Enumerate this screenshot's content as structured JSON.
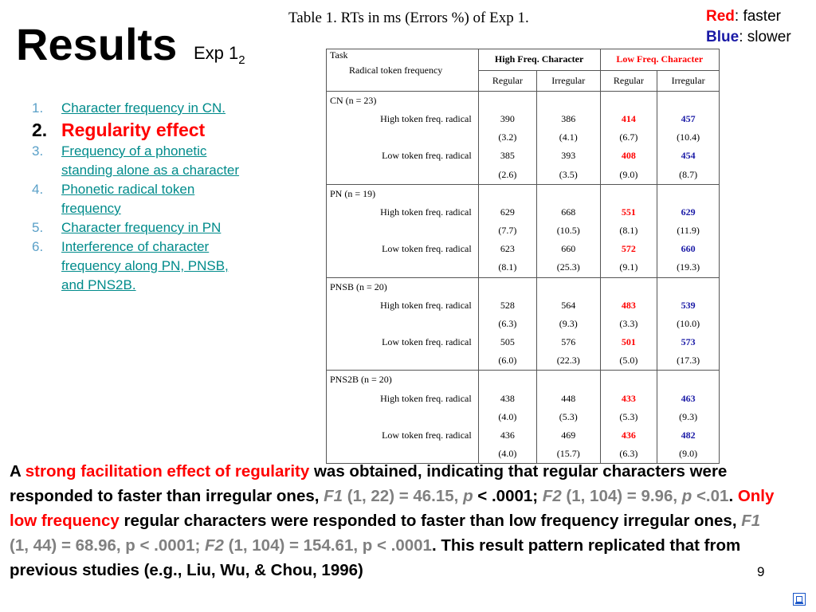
{
  "slide": {
    "title": "Results",
    "subtitle": "Exp 1",
    "subtitle_sub": "2",
    "caption": "Table 1. RTs in ms (Errors %) of Exp 1.",
    "page_number": "9"
  },
  "legend": {
    "red_label": "Red",
    "red_text": ": faster",
    "blue_label": "Blue",
    "blue_text": ": slower"
  },
  "agenda": [
    {
      "num": "1.",
      "text": "Character frequency in CN."
    },
    {
      "num": "2.",
      "text": "Regularity effect"
    },
    {
      "num": "3.",
      "text": "Frequency of a phonetic standing alone as a character"
    },
    {
      "num": "4.",
      "text": "Phonetic radical token frequency"
    },
    {
      "num": "5.",
      "text": "Character frequency in PN"
    },
    {
      "num": "6.",
      "text": "Interference of character frequency along PN, PNSB, and PNS2B."
    }
  ],
  "table": {
    "task_label": "Task",
    "radical_label": "Radical  token  frequency",
    "high_group": "High Freq. Character",
    "low_group": "Low Freq. Character",
    "columns": [
      "Regular",
      "Irregular",
      "Regular",
      "Irregular"
    ],
    "groups": [
      {
        "name": "CN (n = 23)",
        "rows": [
          {
            "label": "High token freq. radical",
            "rt": [
              "390",
              "386",
              "414",
              "457"
            ],
            "err": [
              "(3.2)",
              "(4.1)",
              "(6.7)",
              "(10.4)"
            ]
          },
          {
            "label": "Low token freq. radical",
            "rt": [
              "385",
              "393",
              "408",
              "454"
            ],
            "err": [
              "(2.6)",
              "(3.5)",
              "(9.0)",
              "(8.7)"
            ]
          }
        ]
      },
      {
        "name": "PN (n = 19)",
        "rows": [
          {
            "label": "High token freq. radical",
            "rt": [
              "629",
              "668",
              "551",
              "629"
            ],
            "err": [
              "(7.7)",
              "(10.5)",
              "(8.1)",
              "(11.9)"
            ]
          },
          {
            "label": "Low token freq. radical",
            "rt": [
              "623",
              "660",
              "572",
              "660"
            ],
            "err": [
              "(8.1)",
              "(25.3)",
              "(9.1)",
              "(19.3)"
            ]
          }
        ]
      },
      {
        "name": "PNSB (n = 20)",
        "rows": [
          {
            "label": "High token freq. radical",
            "rt": [
              "528",
              "564",
              "483",
              "539"
            ],
            "err": [
              "(6.3)",
              "(9.3)",
              "(3.3)",
              "(10.0)"
            ]
          },
          {
            "label": "Low token freq. radical",
            "rt": [
              "505",
              "576",
              "501",
              "573"
            ],
            "err": [
              "(6.0)",
              "(22.3)",
              "(5.0)",
              "(17.3)"
            ]
          }
        ]
      },
      {
        "name": "PNS2B (n = 20)",
        "rows": [
          {
            "label": "High token freq. radical",
            "rt": [
              "438",
              "448",
              "433",
              "463"
            ],
            "err": [
              "(4.0)",
              "(5.3)",
              "(5.3)",
              "(9.3)"
            ]
          },
          {
            "label": "Low token freq. radical",
            "rt": [
              "436",
              "469",
              "436",
              "482"
            ],
            "err": [
              "(4.0)",
              "(15.7)",
              "(6.3)",
              "(9.0)"
            ]
          }
        ]
      }
    ]
  },
  "summary": {
    "p1": "A ",
    "p2": "strong facilitation effect of regularity",
    "p3": " was obtained, indicating that regular characters were responded to faster than irregular ones, ",
    "p4": "F1",
    "p5": " (1, 22) = 46.15, ",
    "p6": "p",
    "p7": " < .0001; ",
    "p8": "F2",
    "p9": " (1, 104) = 9.96, ",
    "p10": "p",
    "p11": " <.01",
    "p12": ".  ",
    "p13": "Only low frequency",
    "p14": " regular characters were responded to faster than low frequency irregular ones, ",
    "p15": "F1",
    "p16": " (1, 44) = 68.96, p < .0001; ",
    "p17": "F2",
    "p18": " (1, 104) = 154.61, p < .0001",
    "p19": ". This result pattern replicated that from previous studies (e.g., Liu, Wu, & Chou, 1996)"
  },
  "colors": {
    "faster": "#ff0000",
    "slower": "#1a1aa6",
    "link": "#008b8b",
    "stat": "#808080"
  },
  "icons": {
    "return": "return-icon"
  }
}
